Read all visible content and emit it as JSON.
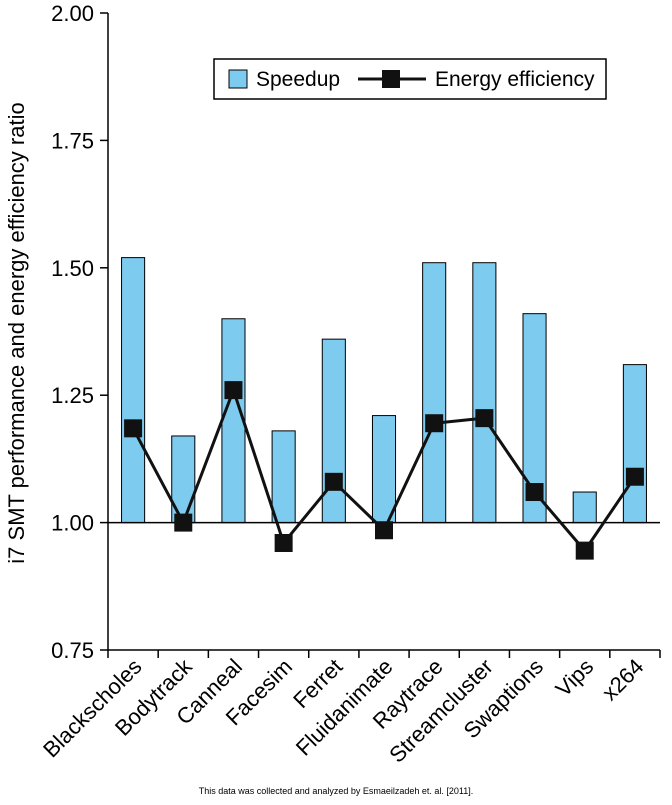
{
  "chart_data": {
    "type": "bar",
    "title": "",
    "ylabel": "i7 SMT performance and energy efficiency ratio",
    "xlabel": "",
    "ylim": [
      0.75,
      2.0
    ],
    "yticks": [
      "0.75",
      "1.00",
      "1.25",
      "1.50",
      "1.75",
      "2.00"
    ],
    "baseline": 1.0,
    "categories": [
      "Blackscholes",
      "Bodytrack",
      "Canneal",
      "Facesim",
      "Ferret",
      "Fluidanimate",
      "Raytrace",
      "Streamcluster",
      "Swaptions",
      "Vips",
      "x264"
    ],
    "series": [
      {
        "name": "Speedup",
        "type": "bar",
        "color": "#7ecbf0",
        "values": [
          1.52,
          1.17,
          1.4,
          1.18,
          1.36,
          1.21,
          1.51,
          1.51,
          1.41,
          1.06,
          1.31
        ]
      },
      {
        "name": "Energy efficiency",
        "type": "line",
        "color": "#111111",
        "values": [
          1.185,
          1.0,
          1.26,
          0.96,
          1.08,
          0.985,
          1.195,
          1.205,
          1.06,
          0.945,
          1.09
        ]
      }
    ],
    "legend": "top-right"
  },
  "footer": "This data was collected and analyzed by Esmaeilzadeh et. al. [2011]."
}
